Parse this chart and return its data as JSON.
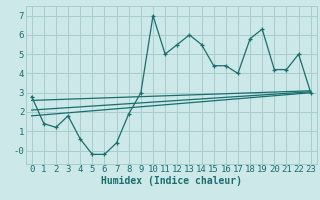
{
  "xlabel": "Humidex (Indice chaleur)",
  "background_color": "#cce8e8",
  "grid_color": "#aacccc",
  "line_color": "#1a6e6e",
  "xlim": [
    -0.5,
    23.5
  ],
  "ylim": [
    -0.7,
    7.5
  ],
  "xticks": [
    0,
    1,
    2,
    3,
    4,
    5,
    6,
    7,
    8,
    9,
    10,
    11,
    12,
    13,
    14,
    15,
    16,
    17,
    18,
    19,
    20,
    21,
    22,
    23
  ],
  "yticks": [
    0,
    1,
    2,
    3,
    4,
    5,
    6,
    7
  ],
  "ytick_labels": [
    "-0",
    "1",
    "2",
    "3",
    "4",
    "5",
    "6",
    "7"
  ],
  "series1_x": [
    0,
    1,
    2,
    3,
    4,
    5,
    6,
    7,
    8,
    9,
    10,
    11,
    12,
    13,
    14,
    15,
    16,
    17,
    18,
    19,
    20,
    21,
    22,
    23
  ],
  "series1_y": [
    2.8,
    1.4,
    1.2,
    1.8,
    0.6,
    -0.2,
    -0.2,
    0.4,
    1.9,
    3.0,
    7.0,
    5.0,
    5.5,
    6.0,
    5.5,
    4.4,
    4.4,
    4.0,
    5.8,
    6.3,
    4.2,
    4.2,
    5.0,
    3.0
  ],
  "series2_x": [
    0,
    23
  ],
  "series2_y": [
    2.1,
    3.05
  ],
  "series3_x": [
    0,
    23
  ],
  "series3_y": [
    2.6,
    3.1
  ],
  "series4_x": [
    0,
    23
  ],
  "series4_y": [
    1.8,
    3.0
  ],
  "font_size_label": 7,
  "font_size_tick": 6.5
}
